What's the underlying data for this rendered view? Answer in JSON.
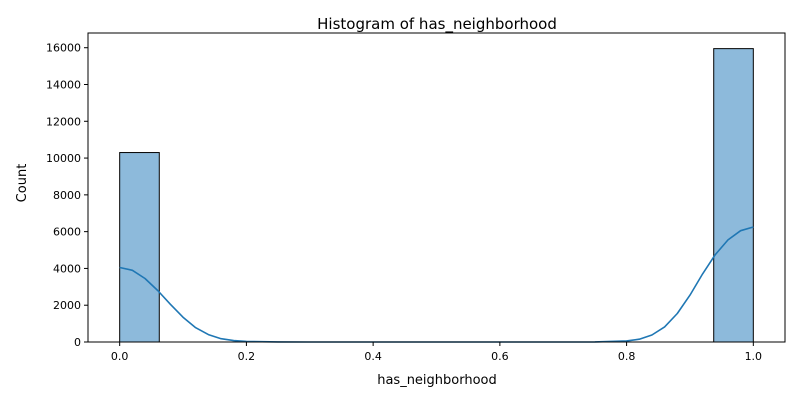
{
  "chart_data": {
    "type": "bar",
    "title": "Histogram of has_neighborhood",
    "xlabel": "has_neighborhood",
    "ylabel": "Count",
    "xlim": [
      -0.05,
      1.05
    ],
    "ylim": [
      0,
      16800
    ],
    "xticks": [
      0.0,
      0.2,
      0.4,
      0.6,
      0.8,
      1.0
    ],
    "xtick_labels": [
      "0.0",
      "0.2",
      "0.4",
      "0.6",
      "0.8",
      "1.0"
    ],
    "yticks": [
      0,
      2000,
      4000,
      6000,
      8000,
      10000,
      12000,
      14000,
      16000
    ],
    "ytick_labels": [
      "0",
      "2000",
      "4000",
      "6000",
      "8000",
      "10000",
      "12000",
      "14000",
      "16000"
    ],
    "bins": [
      {
        "x0": 0.0,
        "x1": 0.0625,
        "value": 10300
      },
      {
        "x0": 0.9375,
        "x1": 1.0,
        "value": 15950
      }
    ],
    "kde": {
      "name": "",
      "x": [
        0.0,
        0.02,
        0.04,
        0.06,
        0.08,
        0.1,
        0.12,
        0.14,
        0.16,
        0.18,
        0.2,
        0.25,
        0.3,
        0.4,
        0.5,
        0.6,
        0.7,
        0.75,
        0.8,
        0.82,
        0.84,
        0.86,
        0.88,
        0.9,
        0.92,
        0.94,
        0.96,
        0.98,
        1.0
      ],
      "y": [
        4050,
        3900,
        3450,
        2800,
        2050,
        1350,
        780,
        400,
        180,
        75,
        30,
        5,
        0,
        0,
        0,
        0,
        0,
        5,
        60,
        150,
        380,
        820,
        1550,
        2550,
        3700,
        4750,
        5550,
        6050,
        6250
      ]
    },
    "grid": false,
    "colors": {
      "bar_fill": "#8dbadb",
      "bar_edge": "#000000",
      "kde_line": "#1f77b4"
    }
  }
}
